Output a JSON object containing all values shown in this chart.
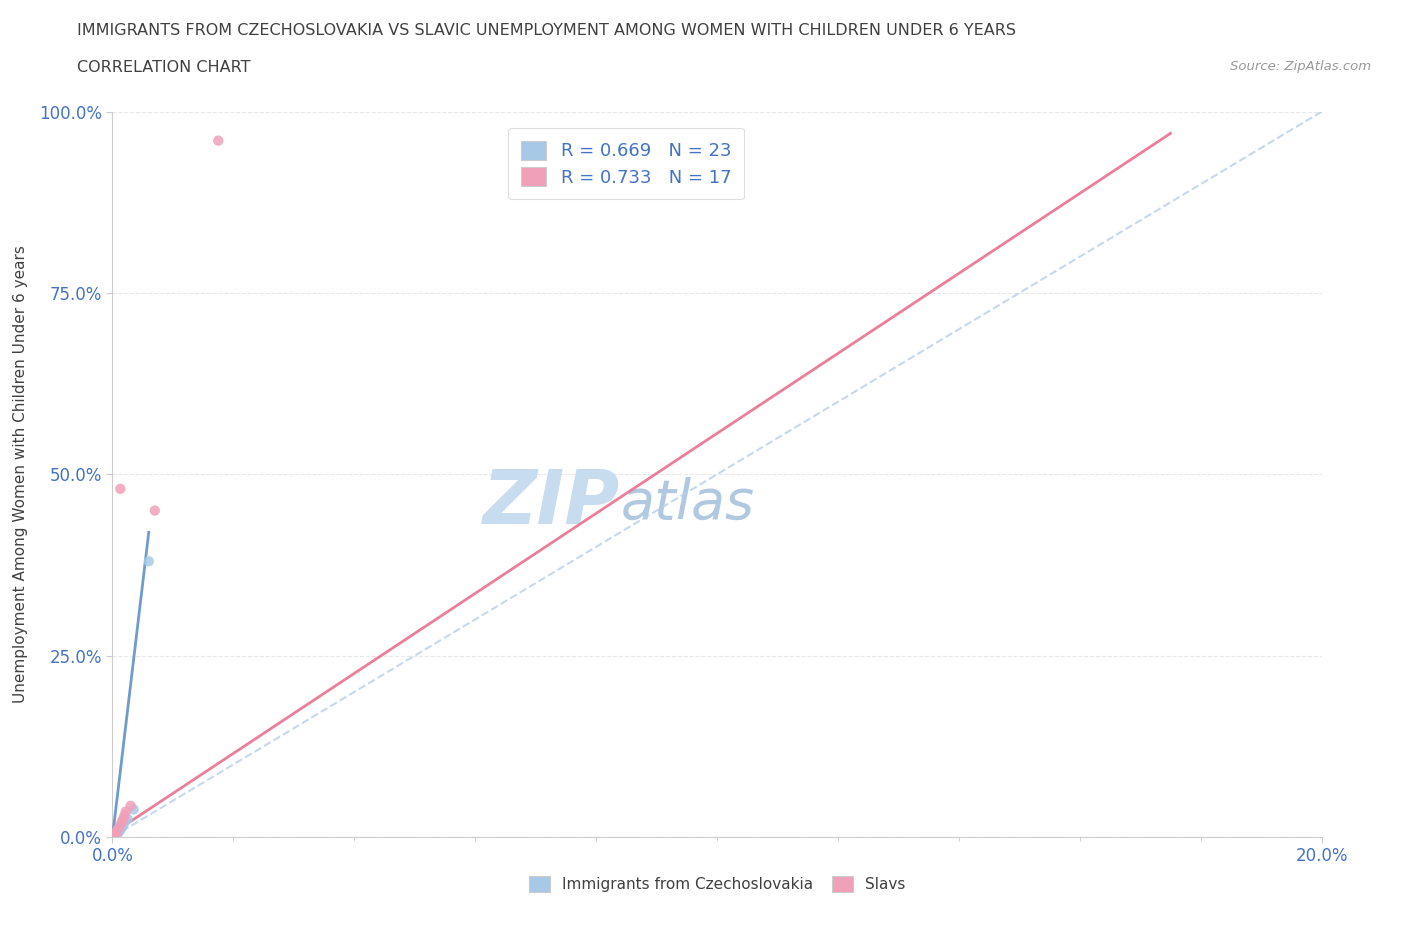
{
  "title": "IMMIGRANTS FROM CZECHOSLOVAKIA VS SLAVIC UNEMPLOYMENT AMONG WOMEN WITH CHILDREN UNDER 6 YEARS",
  "subtitle": "CORRELATION CHART",
  "source": "Source: ZipAtlas.com",
  "ylabel": "Unemployment Among Women with Children Under 6 years",
  "legend_label1": "Immigrants from Czechoslovakia",
  "legend_label2": "Slavs",
  "R1": 0.669,
  "N1": 23,
  "R2": 0.733,
  "N2": 17,
  "color_blue": "#A8C8E8",
  "color_pink": "#F0A0B8",
  "color_blue_line": "#6090C8",
  "color_pink_line": "#E87090",
  "color_diag": "#B8D0E8",
  "color_title": "#404040",
  "color_text_blue": "#4472C4",
  "background_color": "#FFFFFF",
  "grid_color": "#E8E8E8",
  "watermark_color_zip": "#C8DCF0",
  "watermark_color_atlas": "#B0C8E0",
  "xlim": [
    0.0,
    0.2
  ],
  "ylim": [
    0.0,
    1.0
  ],
  "xticks": [
    0.0,
    0.2
  ],
  "yticks": [
    0.0,
    0.25,
    0.5,
    0.75,
    1.0
  ],
  "blue_x": [
    0.0002,
    0.0003,
    0.0004,
    0.0004,
    0.0005,
    0.0006,
    0.0006,
    0.0007,
    0.0008,
    0.0008,
    0.0009,
    0.001,
    0.0011,
    0.0012,
    0.0013,
    0.0014,
    0.0015,
    0.0016,
    0.0018,
    0.002,
    0.0025,
    0.0035,
    0.006
  ],
  "blue_y": [
    0.001,
    0.001,
    0.001,
    0.002,
    0.002,
    0.002,
    0.003,
    0.003,
    0.004,
    0.005,
    0.006,
    0.007,
    0.008,
    0.009,
    0.01,
    0.012,
    0.013,
    0.015,
    0.017,
    0.02,
    0.025,
    0.038,
    0.38
  ],
  "pink_x": [
    0.0002,
    0.0004,
    0.0005,
    0.0006,
    0.0007,
    0.0008,
    0.001,
    0.0012,
    0.0013,
    0.0015,
    0.0016,
    0.0018,
    0.002,
    0.0022,
    0.003,
    0.007,
    0.0175
  ],
  "pink_y": [
    0.002,
    0.003,
    0.004,
    0.005,
    0.007,
    0.01,
    0.012,
    0.015,
    0.48,
    0.02,
    0.022,
    0.025,
    0.03,
    0.035,
    0.043,
    0.45,
    0.96
  ],
  "blue_line_x": [
    0.0,
    0.006
  ],
  "blue_line_y": [
    0.0,
    0.42
  ],
  "pink_line_x": [
    0.0,
    0.175
  ],
  "pink_line_y": [
    0.005,
    0.97
  ],
  "diag_line_x": [
    0.0,
    0.2
  ],
  "diag_line_y": [
    0.0,
    1.0
  ]
}
